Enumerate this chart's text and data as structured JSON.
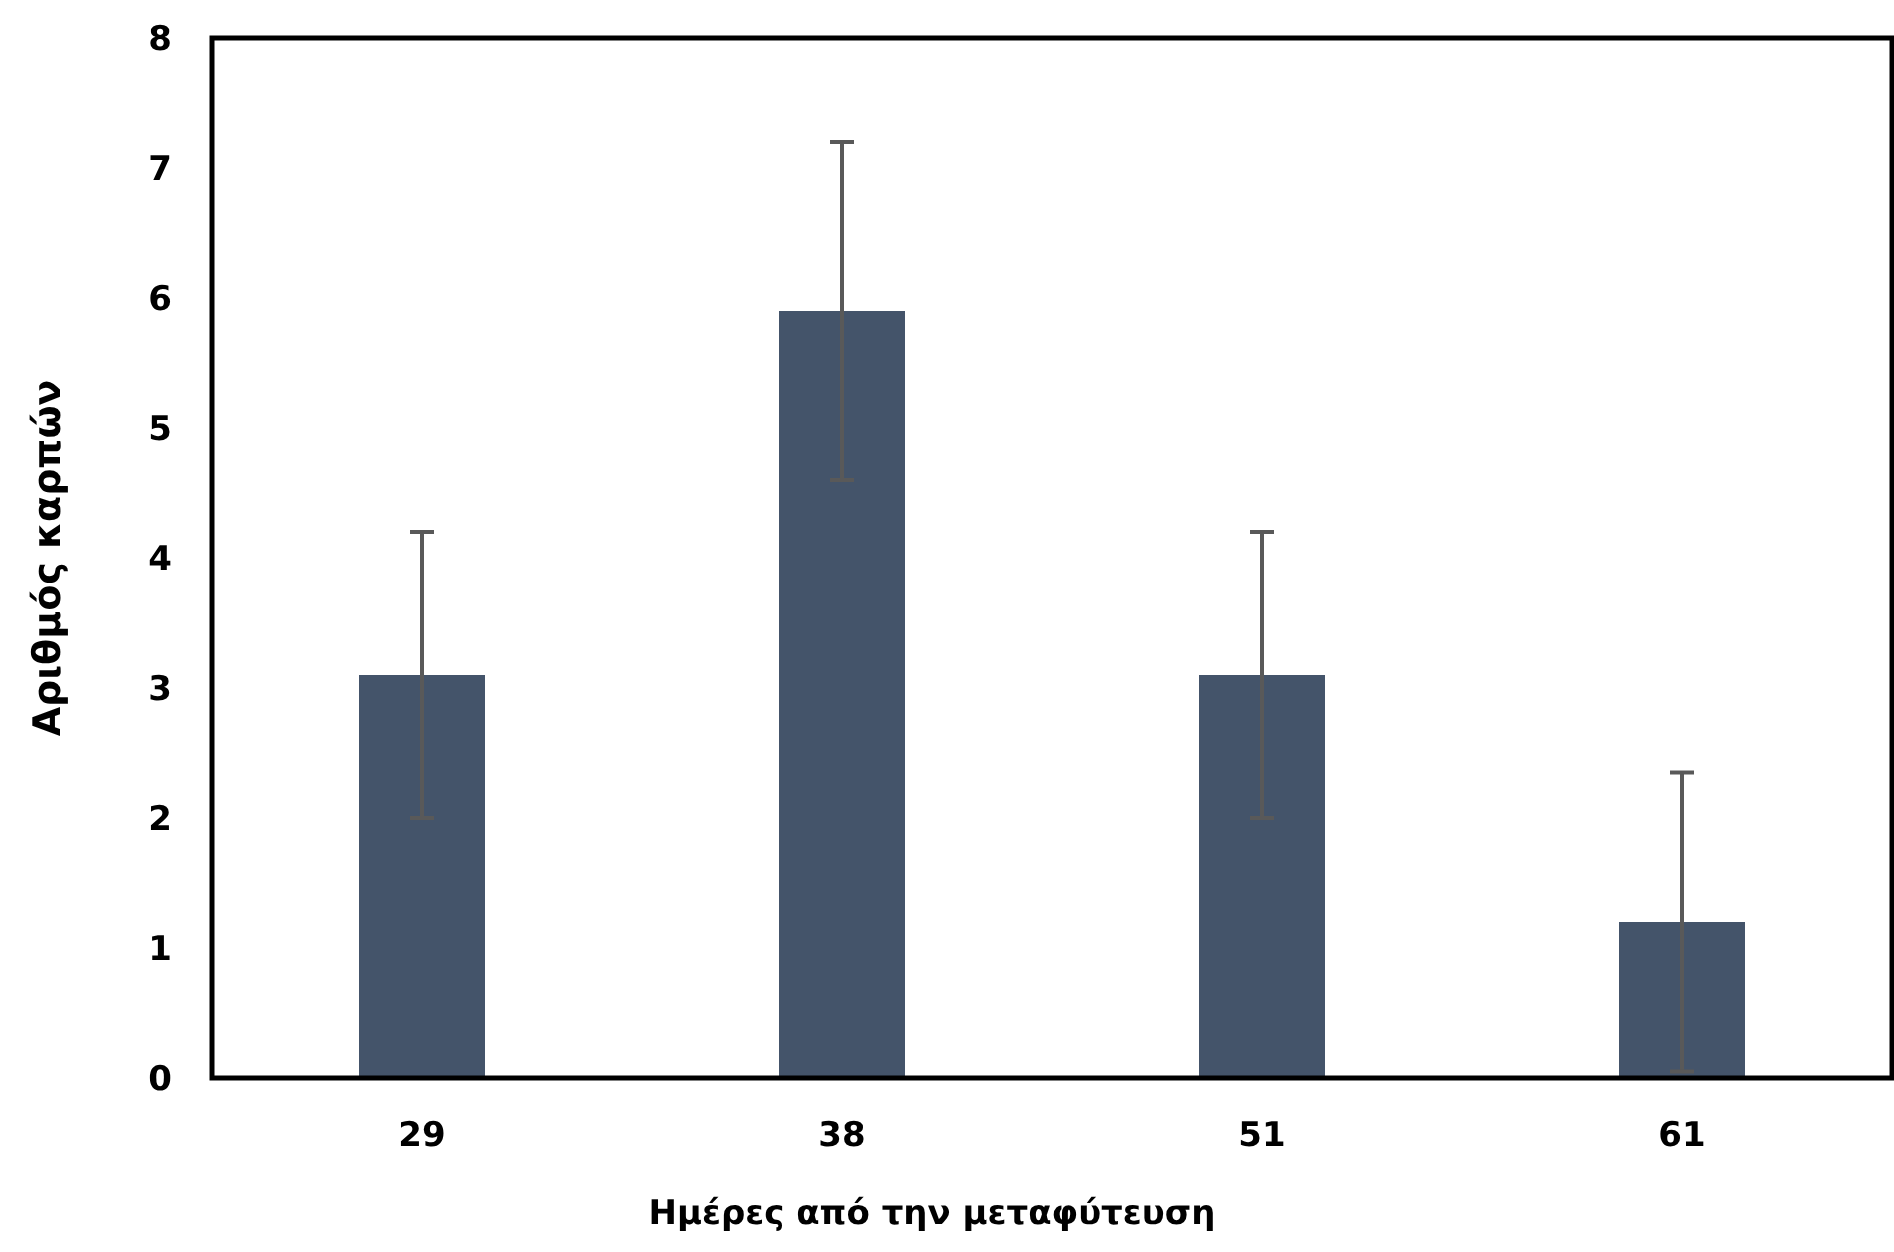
{
  "chart_data": {
    "type": "bar",
    "xlabel": "Ημέρες από την μεταφύτευση",
    "ylabel": "Αριθμός καρπών",
    "categories": [
      "29",
      "38",
      "51",
      "61"
    ],
    "values": [
      3.1,
      5.9,
      3.1,
      1.2
    ],
    "errors": [
      1.1,
      1.3,
      1.1,
      1.15
    ],
    "color": "#44546a",
    "ylim": [
      0,
      8
    ],
    "yticks": [
      0,
      1,
      2,
      3,
      4,
      5,
      6,
      7,
      8
    ],
    "grid": false
  }
}
